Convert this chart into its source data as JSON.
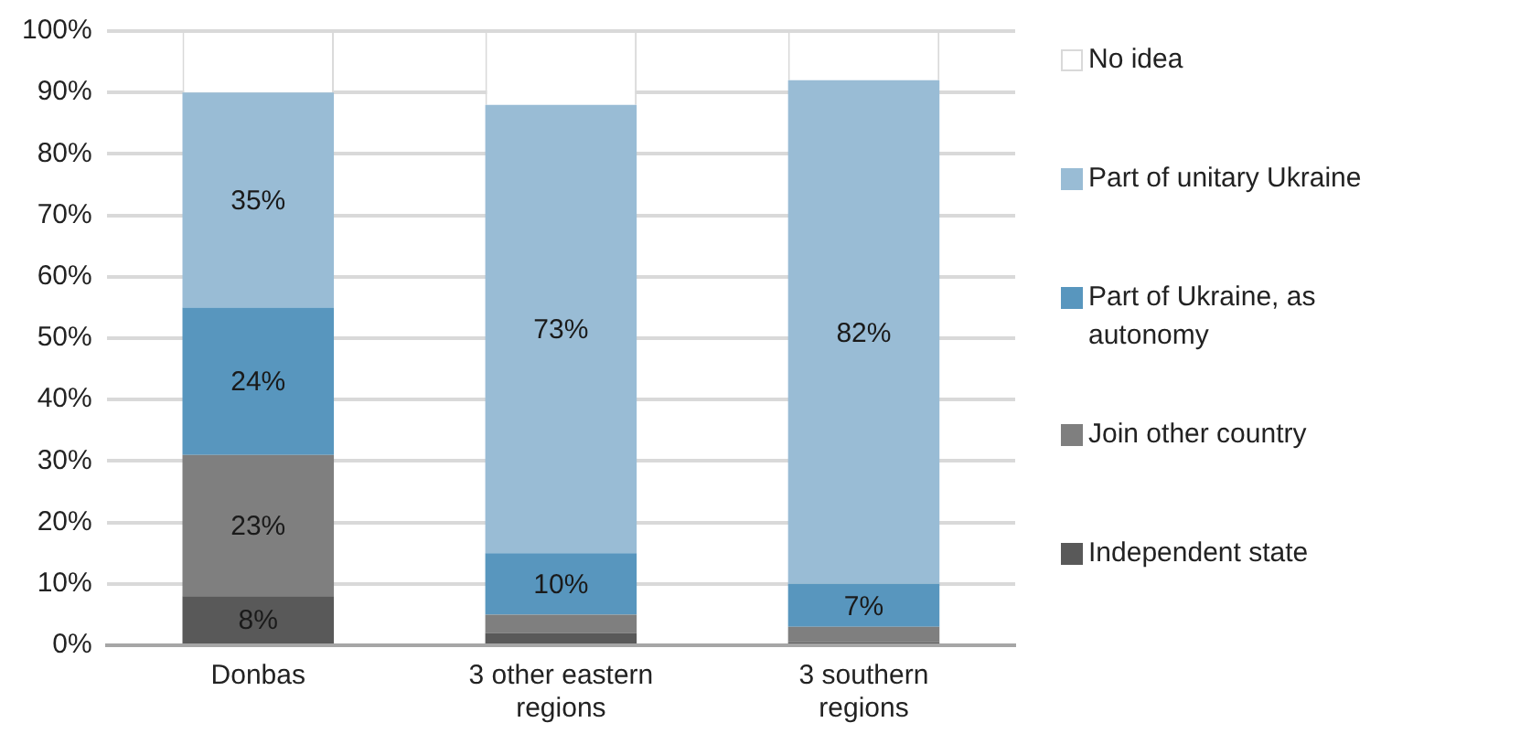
{
  "chart_data": {
    "type": "bar",
    "stacked": true,
    "categories": [
      "Donbas",
      "3 other eastern regions",
      "3 southern regions"
    ],
    "series": [
      {
        "name": "Independent state",
        "color": "#595959",
        "values": [
          8,
          2,
          0.5
        ],
        "value_labels": [
          "8%",
          null,
          null
        ]
      },
      {
        "name": "Join other country",
        "color": "#7f7f7f",
        "values": [
          23,
          3,
          2.5
        ],
        "value_labels": [
          "23%",
          null,
          null
        ]
      },
      {
        "name": "Part of Ukraine, as autonomy",
        "color": "#5896be",
        "values": [
          24,
          10,
          7
        ],
        "value_labels": [
          "24%",
          "10%",
          "7%"
        ]
      },
      {
        "name": "Part of unitary Ukraine",
        "color": "#99bcd5",
        "values": [
          35,
          73,
          82
        ],
        "value_labels": [
          "35%",
          "73%",
          "82%"
        ]
      },
      {
        "name": "No idea",
        "color": "#ffffff",
        "values": [
          10,
          12,
          8
        ]
      }
    ],
    "ylim": [
      0,
      100
    ],
    "yticks": [
      {
        "value": 0,
        "label": "0%"
      },
      {
        "value": 10,
        "label": "10%"
      },
      {
        "value": 20,
        "label": "20%"
      },
      {
        "value": 30,
        "label": "30%"
      },
      {
        "value": 40,
        "label": "40%"
      },
      {
        "value": 50,
        "label": "50%"
      },
      {
        "value": 60,
        "label": "60%"
      },
      {
        "value": 70,
        "label": "70%"
      },
      {
        "value": 80,
        "label": "80%"
      },
      {
        "value": 90,
        "label": "90%"
      },
      {
        "value": 100,
        "label": "100%"
      }
    ],
    "grid": "y",
    "legend": "right"
  }
}
